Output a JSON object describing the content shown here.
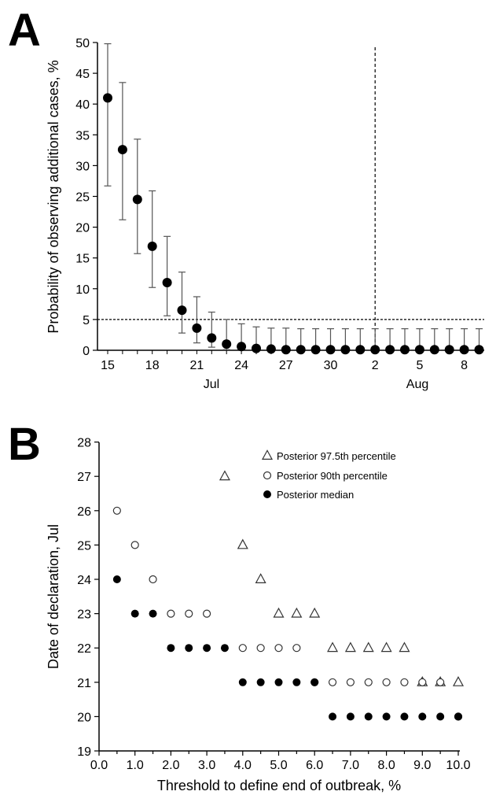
{
  "panels": {
    "a": {
      "letter": "A"
    },
    "b": {
      "letter": "B"
    }
  },
  "chart_data": [
    {
      "type": "scatter",
      "panel": "A",
      "ylabel": "Probability of observing additional cases, %",
      "xlabel": "",
      "ylim": [
        0,
        50
      ],
      "yticks": [
        "0",
        "5",
        "10",
        "15",
        "20",
        "25",
        "30",
        "35",
        "40",
        "45",
        "50"
      ],
      "xlim": [
        "Jul 14",
        "Aug 10"
      ],
      "xtick_labels": [
        "15",
        "18",
        "21",
        "24",
        "27",
        "30",
        "2",
        "5",
        "8"
      ],
      "month_labels": [
        "Jul",
        "Aug"
      ],
      "reference_lines": {
        "horizontal_y": 5,
        "vertical_x": "Aug 2"
      },
      "series": [
        {
          "style": "filled circle with error bars",
          "x": [
            "Jul 15",
            "Jul 16",
            "Jul 17",
            "Jul 18",
            "Jul 19",
            "Jul 20",
            "Jul 21",
            "Jul 22",
            "Jul 23",
            "Jul 24",
            "Jul 25",
            "Jul 26",
            "Jul 27",
            "Jul 28",
            "Jul 29",
            "Jul 30",
            "Jul 31",
            "Aug 1",
            "Aug 2",
            "Aug 3",
            "Aug 4",
            "Aug 5",
            "Aug 6",
            "Aug 7",
            "Aug 8",
            "Aug 9"
          ],
          "y": [
            41.0,
            32.6,
            24.5,
            16.9,
            11.0,
            6.5,
            3.6,
            2.0,
            1.0,
            0.6,
            0.3,
            0.2,
            0.1,
            0.1,
            0.1,
            0.1,
            0.1,
            0.1,
            0.1,
            0.1,
            0.1,
            0.1,
            0.1,
            0.1,
            0.1,
            0.1
          ],
          "lower": [
            26.7,
            21.2,
            15.7,
            10.2,
            5.6,
            2.8,
            1.2,
            0.5,
            0.1,
            0.0,
            0.0,
            0.0,
            0.0,
            0.0,
            0.0,
            0.0,
            0.0,
            0.0,
            0.0,
            0.0,
            0.0,
            0.0,
            0.0,
            0.0,
            0.0,
            0.0
          ],
          "upper": [
            49.8,
            43.5,
            34.3,
            25.9,
            18.5,
            12.7,
            8.7,
            6.2,
            5.0,
            4.3,
            3.8,
            3.6,
            3.6,
            3.5,
            3.5,
            3.5,
            3.5,
            3.5,
            3.5,
            3.5,
            3.5,
            3.5,
            3.5,
            3.5,
            3.5,
            3.5
          ]
        }
      ]
    },
    {
      "type": "scatter",
      "panel": "B",
      "xlabel": "Threshold to define end of outbreak, %",
      "ylabel": "Date of declaration, Jul",
      "xlim": [
        0,
        10
      ],
      "ylim": [
        19,
        28
      ],
      "xticks": [
        "0.0",
        "1.0",
        "2.0",
        "3.0",
        "4.0",
        "5.0",
        "6.0",
        "7.0",
        "8.0",
        "9.0",
        "10.0"
      ],
      "yticks": [
        "19",
        "20",
        "21",
        "22",
        "23",
        "24",
        "25",
        "26",
        "27",
        "28"
      ],
      "legend_position": "top-right",
      "series": [
        {
          "name": "Posterior 97.5th percentile",
          "marker": "open-triangle",
          "x": [
            3.5,
            4.0,
            4.5,
            5.0,
            5.5,
            6.0,
            6.5,
            7.0,
            7.5,
            8.0,
            8.5,
            9.0,
            9.5,
            10.0
          ],
          "y": [
            27,
            25,
            24,
            23,
            23,
            23,
            22,
            22,
            22,
            22,
            22,
            21,
            21,
            21
          ]
        },
        {
          "name": "Posterior 90th percentile",
          "marker": "open-circle",
          "x": [
            0.5,
            1.0,
            1.5,
            2.0,
            2.5,
            3.0,
            4.0,
            4.5,
            5.0,
            5.5,
            6.0,
            6.5,
            7.0,
            7.5,
            8.0,
            8.5,
            9.0,
            9.5,
            10.0
          ],
          "y": [
            26,
            25,
            24,
            23,
            23,
            23,
            22,
            22,
            22,
            22,
            21,
            21,
            21,
            21,
            21,
            21,
            21,
            21,
            20
          ]
        },
        {
          "name": "Posterior median",
          "marker": "filled-circle",
          "x": [
            0.5,
            1.0,
            1.5,
            2.0,
            2.5,
            3.0,
            3.5,
            4.0,
            4.5,
            5.0,
            5.5,
            6.0,
            6.5,
            7.0,
            7.5,
            8.0,
            8.5,
            9.0,
            9.5,
            10.0
          ],
          "y": [
            24,
            23,
            23,
            22,
            22,
            22,
            22,
            21,
            21,
            21,
            21,
            21,
            20,
            20,
            20,
            20,
            20,
            20,
            20,
            20
          ]
        }
      ]
    }
  ]
}
